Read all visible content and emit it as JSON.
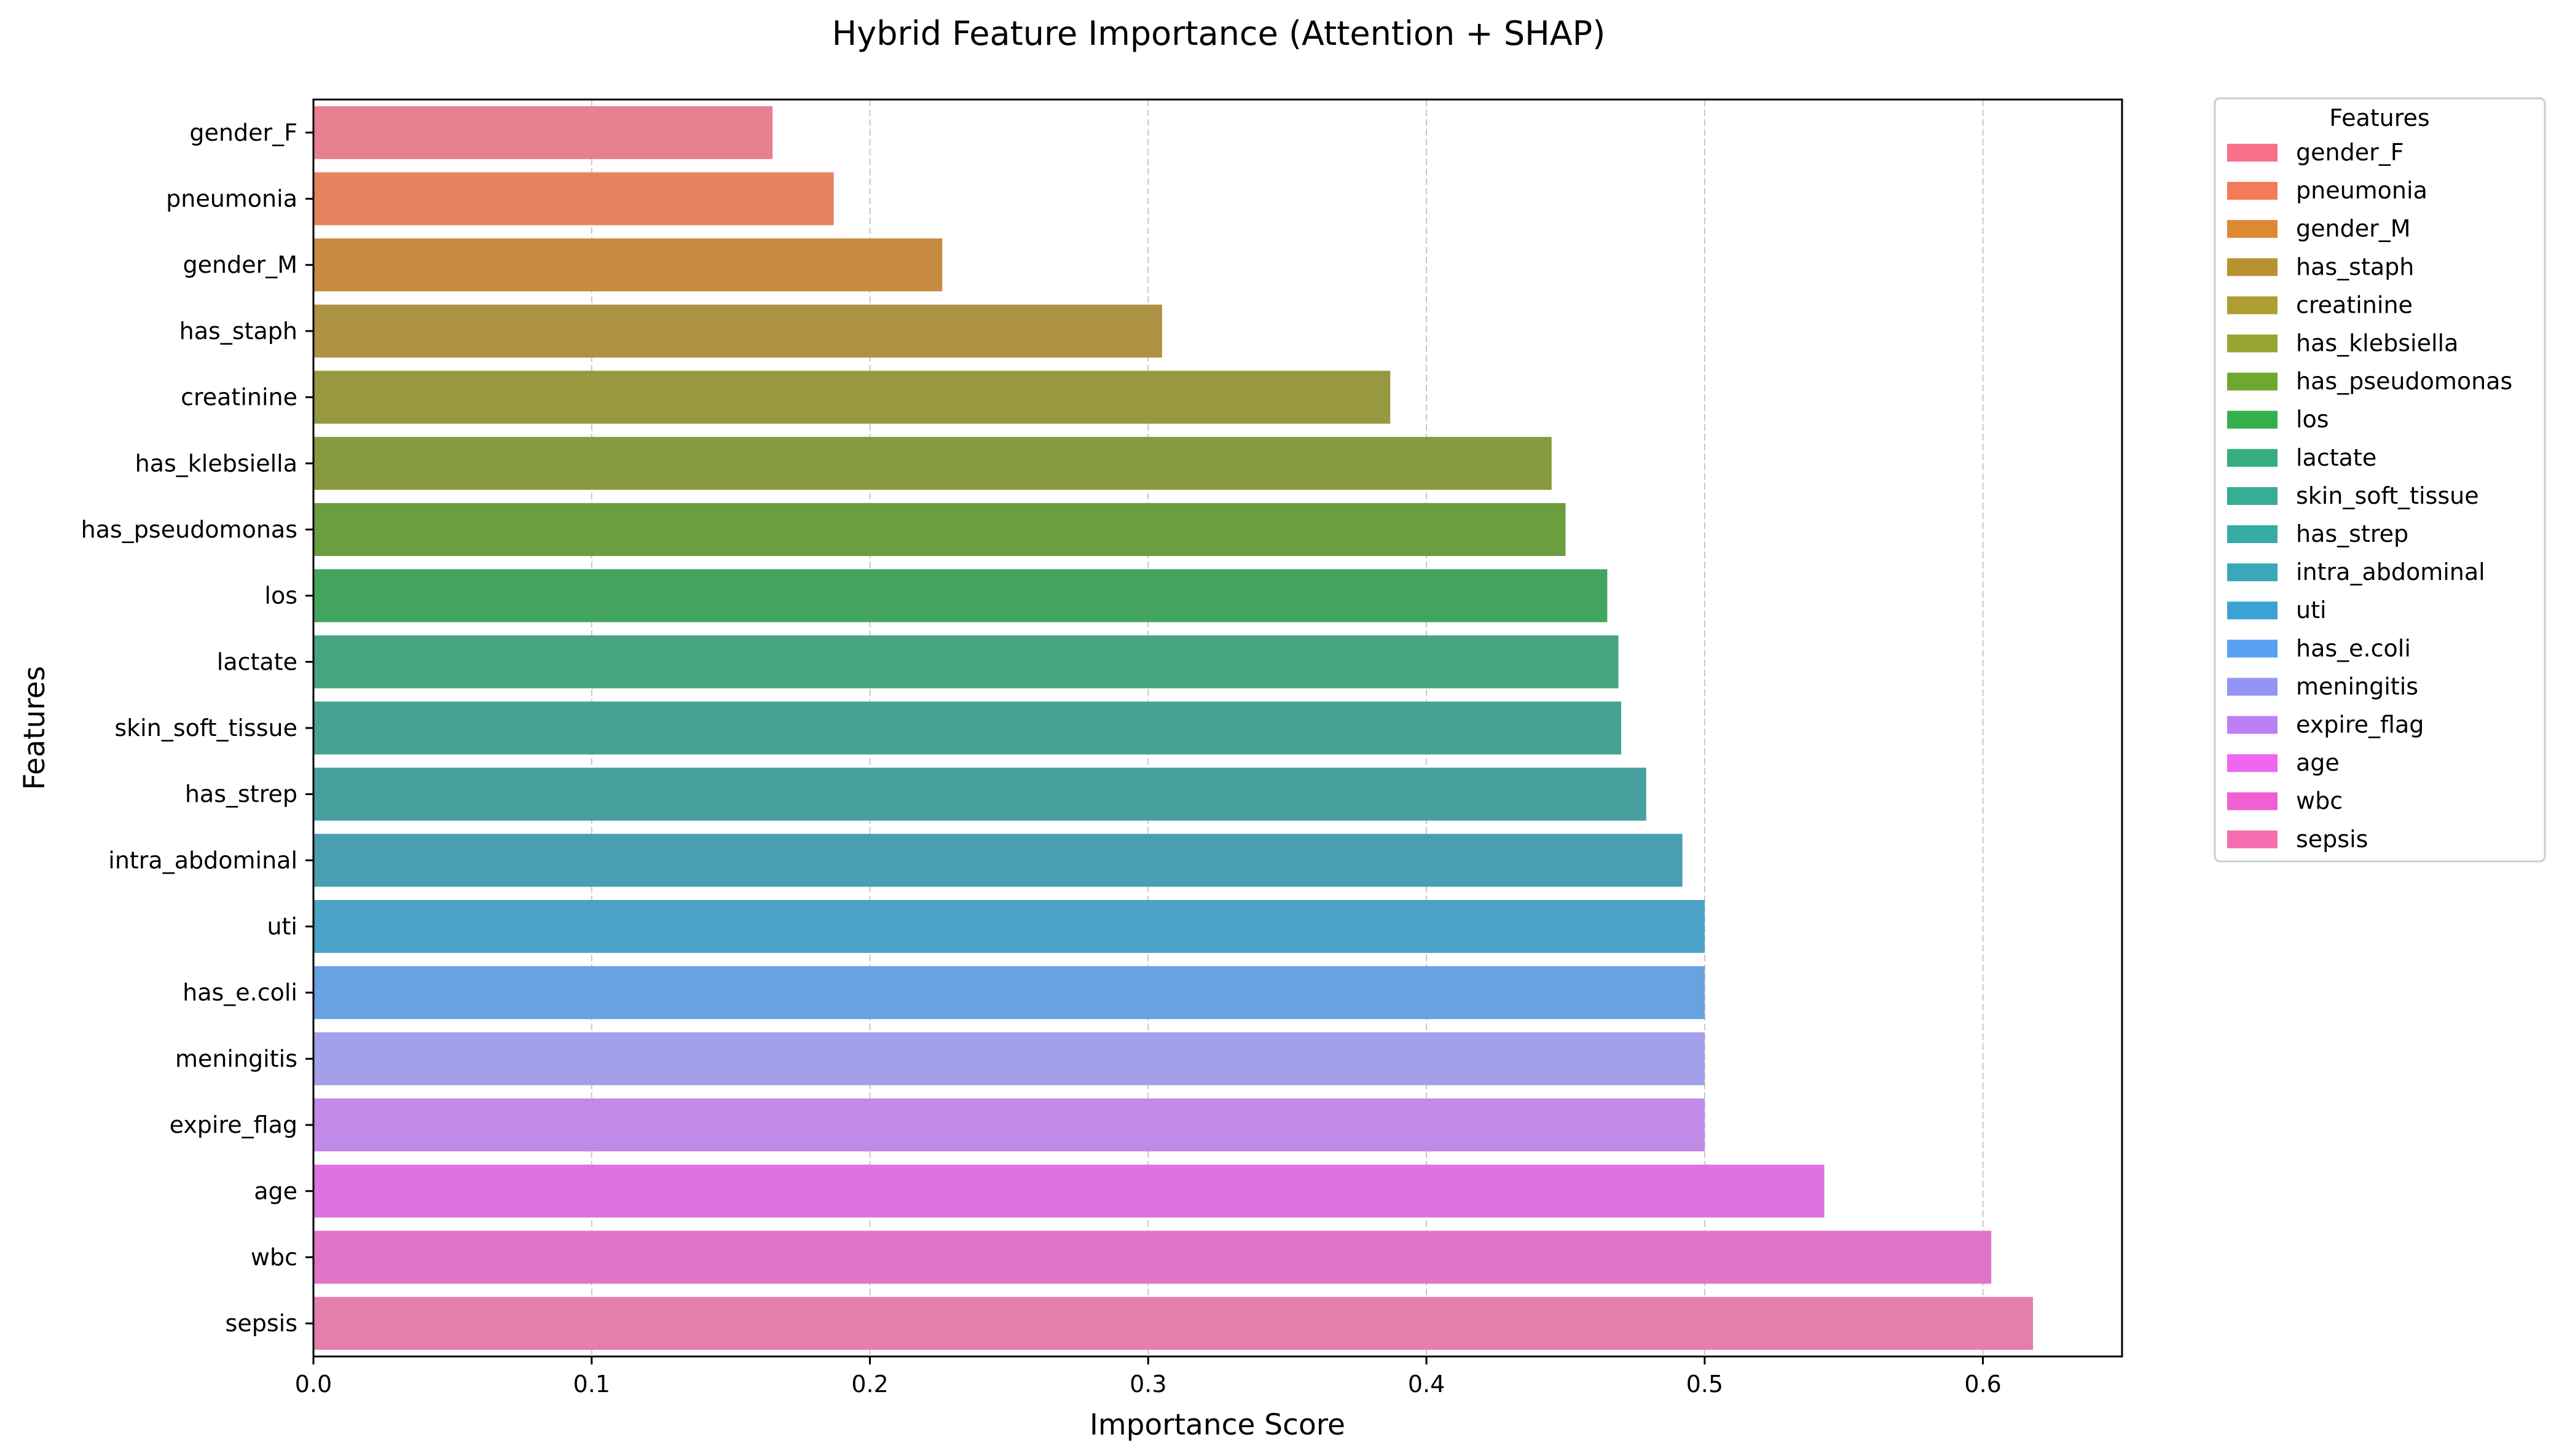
{
  "chart_data": {
    "type": "bar",
    "orientation": "horizontal",
    "title": "Hybrid Feature Importance (Attention + SHAP)",
    "xlabel": "Importance Score",
    "ylabel": "Features",
    "xlim": [
      0,
      0.65
    ],
    "xticks": [
      0.0,
      0.1,
      0.2,
      0.3,
      0.4,
      0.5,
      0.6
    ],
    "xtick_labels": [
      "0.0",
      "0.1",
      "0.2",
      "0.3",
      "0.4",
      "0.5",
      "0.6"
    ],
    "grid": "x, dashed",
    "legend": {
      "title": "Features",
      "placement": "outside upper right"
    },
    "categories": [
      "gender_F",
      "pneumonia",
      "gender_M",
      "has_staph",
      "creatinine",
      "has_klebsiella",
      "has_pseudomonas",
      "los",
      "lactate",
      "skin_soft_tissue",
      "has_strep",
      "intra_abdominal",
      "uti",
      "has_e.coli",
      "meningitis",
      "expire_flag",
      "age",
      "wbc",
      "sepsis"
    ],
    "values": [
      0.165,
      0.187,
      0.226,
      0.305,
      0.387,
      0.445,
      0.45,
      0.465,
      0.469,
      0.47,
      0.479,
      0.492,
      0.5,
      0.5,
      0.5,
      0.5,
      0.543,
      0.603,
      0.618
    ],
    "bar_colors": [
      "#e8808f",
      "#e6835f",
      "#c78b42",
      "#ad9243",
      "#979840",
      "#879a40",
      "#6a9e3e",
      "#43a45e",
      "#47a580",
      "#46a293",
      "#47a09e",
      "#499fb1",
      "#4aa2c6",
      "#69a1e1",
      "#a39fe9",
      "#c08ae6",
      "#df72e3",
      "#e075c8",
      "#e47eab"
    ],
    "legend_colors": [
      "#f77189",
      "#f57a58",
      "#dc8932",
      "#ba9131",
      "#ae9d31",
      "#97a431",
      "#6fa831",
      "#33b04c",
      "#35ae7f",
      "#36ad94",
      "#38aba6",
      "#3aa8ba",
      "#3ca2d5",
      "#59a0f2",
      "#9395f4",
      "#bd80f4",
      "#ef66f0",
      "#f15fd3",
      "#f66eb0"
    ]
  }
}
